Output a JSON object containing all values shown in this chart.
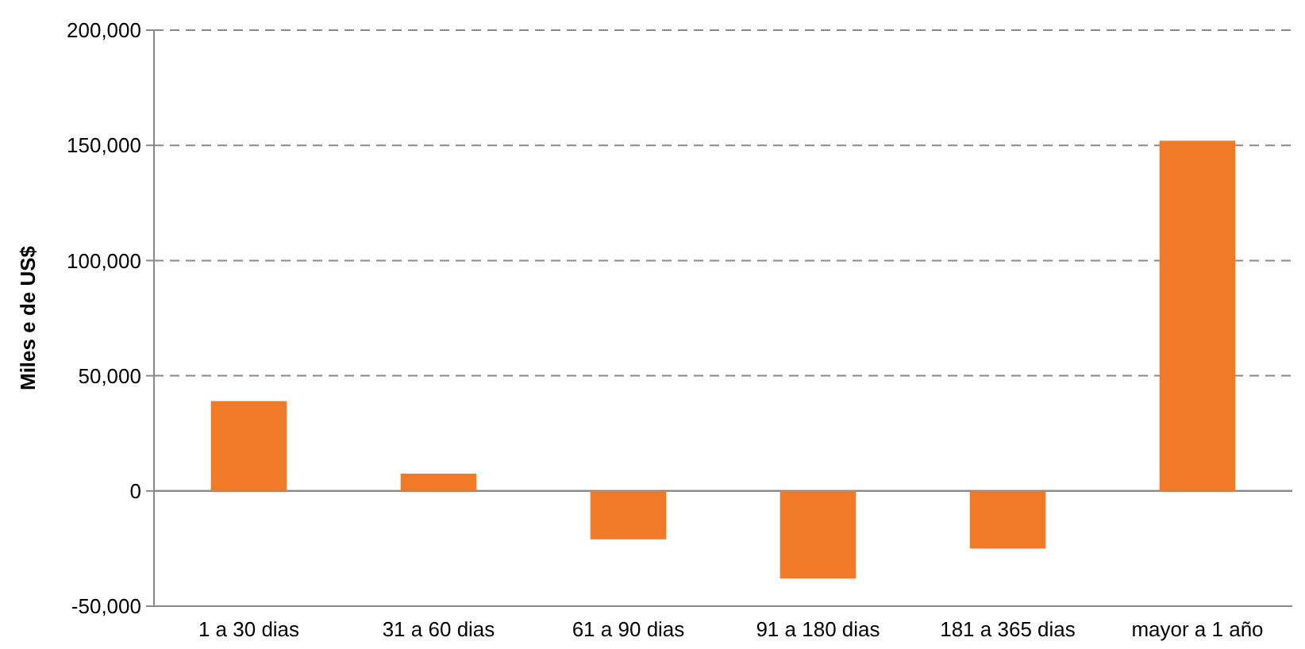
{
  "chart_data": {
    "type": "bar",
    "ylabel": "Miles e de US$",
    "categories": [
      "1 a 30 dias",
      "31 a 60 dias",
      "61 a 90 dias",
      "91 a 180 dias",
      "181 a 365 dias",
      "mayor a 1 año"
    ],
    "values": [
      39000,
      7500,
      -21000,
      -38000,
      -25000,
      152000
    ],
    "color": "#f07a28",
    "ylim": [
      -50000,
      200000
    ],
    "yticks": [
      {
        "value": -50000,
        "label": "-50,000"
      },
      {
        "value": 0,
        "label": "0"
      },
      {
        "value": 50000,
        "label": "50,000"
      },
      {
        "value": 100000,
        "label": "100,000"
      },
      {
        "value": 150000,
        "label": "150,000"
      },
      {
        "value": 200000,
        "label": "200,000"
      }
    ],
    "grid": "y"
  }
}
